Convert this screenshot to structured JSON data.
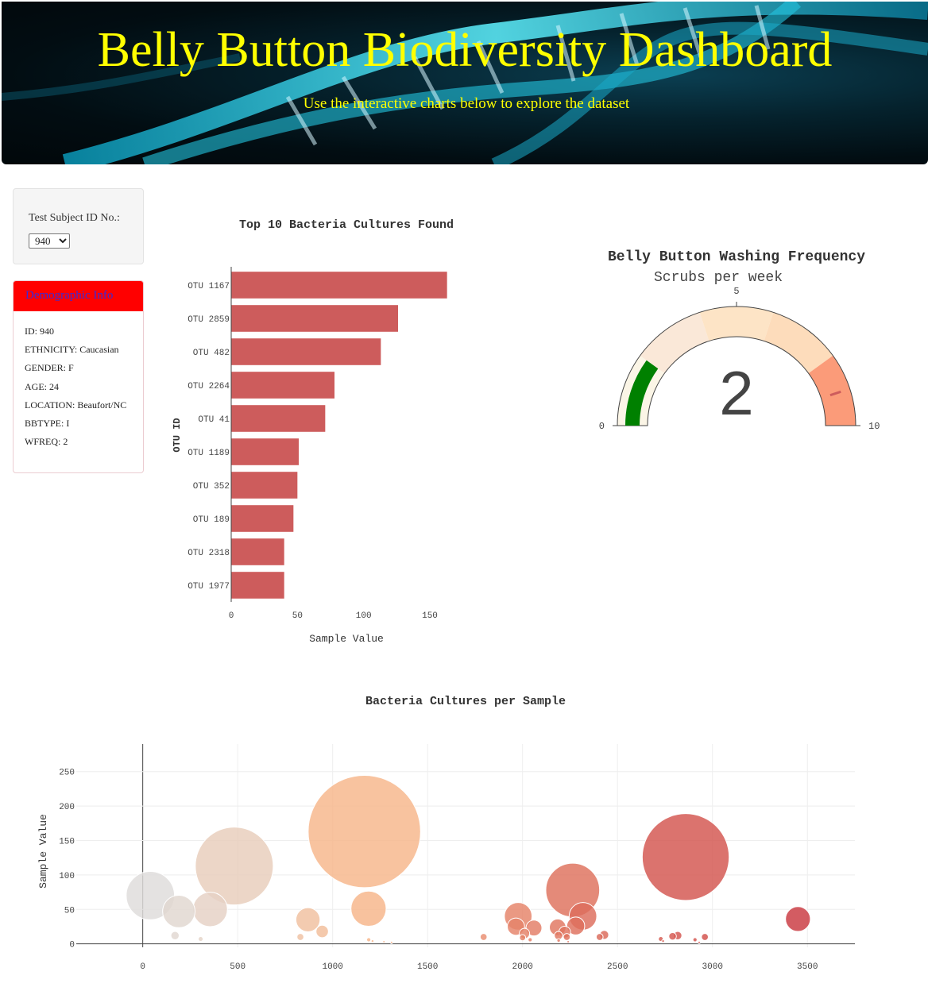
{
  "header": {
    "title": "Belly Button Biodiversity Dashboard",
    "subtitle": "Use the interactive charts below to explore the dataset"
  },
  "selector": {
    "label": "Test Subject ID No.:",
    "selected": "940"
  },
  "demographics": {
    "heading": "Demographic Info",
    "rows": [
      "ID: 940",
      "ETHNICITY: Caucasian",
      "GENDER: F",
      "AGE: 24",
      "LOCATION: Beaufort/NC",
      "BBTYPE: I",
      "WFREQ: 2"
    ]
  },
  "colors": {
    "bar": "#cd5c5c",
    "gauge_bar": "#008000",
    "title_yellow": "#ffff00",
    "demo_heading_bg": "#ff0000"
  },
  "chart_data": [
    {
      "type": "bar",
      "orientation": "horizontal",
      "title": "Top 10 Bacteria Cultures Found",
      "xlabel": "Sample Value",
      "ylabel": "OTU ID",
      "categories": [
        "OTU 1167",
        "OTU 2859",
        "OTU 482",
        "OTU 2264",
        "OTU 41",
        "OTU 1189",
        "OTU 352",
        "OTU 189",
        "OTU 2318",
        "OTU 1977"
      ],
      "values": [
        163,
        126,
        113,
        78,
        71,
        51,
        50,
        47,
        40,
        40
      ],
      "xlim": [
        0,
        165
      ],
      "xticks": [
        0,
        50,
        100,
        150
      ],
      "grid": false
    },
    {
      "type": "gauge",
      "title": "Belly Button Washing Frequency",
      "subtitle": "Scrubs per week",
      "value": 2,
      "range": [
        0,
        10
      ],
      "ticks": [
        0,
        5,
        10
      ],
      "steps": [
        {
          "range": [
            0,
            2
          ],
          "color": "#fbf5e6"
        },
        {
          "range": [
            2,
            4
          ],
          "color": "#fae8d8"
        },
        {
          "range": [
            4,
            6
          ],
          "color": "#fde4c6"
        },
        {
          "range": [
            6,
            8
          ],
          "color": "#fddcbb"
        },
        {
          "range": [
            8,
            10
          ],
          "color": "#fb9b79"
        }
      ],
      "threshold": 9
    },
    {
      "type": "scatter",
      "variant": "bubble",
      "title": "Bacteria Cultures per Sample",
      "xlabel": "",
      "ylabel": "Sample Value",
      "xlim": [
        -350,
        3750
      ],
      "ylim": [
        -5,
        290
      ],
      "xticks": [
        0,
        500,
        1000,
        1500,
        2000,
        2500,
        3000,
        3500
      ],
      "yticks": [
        0,
        50,
        100,
        150,
        200,
        250
      ],
      "grid": true,
      "points": [
        {
          "x": 40,
          "y": 70
        },
        {
          "x": 190,
          "y": 47
        },
        {
          "x": 355,
          "y": 50
        },
        {
          "x": 482,
          "y": 113
        },
        {
          "x": 170,
          "y": 12
        },
        {
          "x": 305,
          "y": 7
        },
        {
          "x": 870,
          "y": 35
        },
        {
          "x": 945,
          "y": 18
        },
        {
          "x": 830,
          "y": 10
        },
        {
          "x": 1167,
          "y": 163
        },
        {
          "x": 1189,
          "y": 51
        },
        {
          "x": 1190,
          "y": 6
        },
        {
          "x": 1210,
          "y": 4
        },
        {
          "x": 1270,
          "y": 3
        },
        {
          "x": 1310,
          "y": 2
        },
        {
          "x": 1795,
          "y": 10
        },
        {
          "x": 1977,
          "y": 40
        },
        {
          "x": 1965,
          "y": 25
        },
        {
          "x": 2010,
          "y": 15
        },
        {
          "x": 2060,
          "y": 23
        },
        {
          "x": 2000,
          "y": 9
        },
        {
          "x": 2040,
          "y": 6
        },
        {
          "x": 2185,
          "y": 24
        },
        {
          "x": 2189,
          "y": 12
        },
        {
          "x": 2222,
          "y": 17
        },
        {
          "x": 2233,
          "y": 10
        },
        {
          "x": 2264,
          "y": 78
        },
        {
          "x": 2318,
          "y": 40
        },
        {
          "x": 2280,
          "y": 26
        },
        {
          "x": 2406,
          "y": 10
        },
        {
          "x": 2430,
          "y": 13
        },
        {
          "x": 2190,
          "y": 5
        },
        {
          "x": 2240,
          "y": 3
        },
        {
          "x": 2728,
          "y": 7
        },
        {
          "x": 2740,
          "y": 4
        },
        {
          "x": 2790,
          "y": 11
        },
        {
          "x": 2817,
          "y": 12
        },
        {
          "x": 2859,
          "y": 126
        },
        {
          "x": 2908,
          "y": 6
        },
        {
          "x": 2960,
          "y": 10
        },
        {
          "x": 2930,
          "y": 2
        },
        {
          "x": 3450,
          "y": 36
        }
      ]
    }
  ]
}
